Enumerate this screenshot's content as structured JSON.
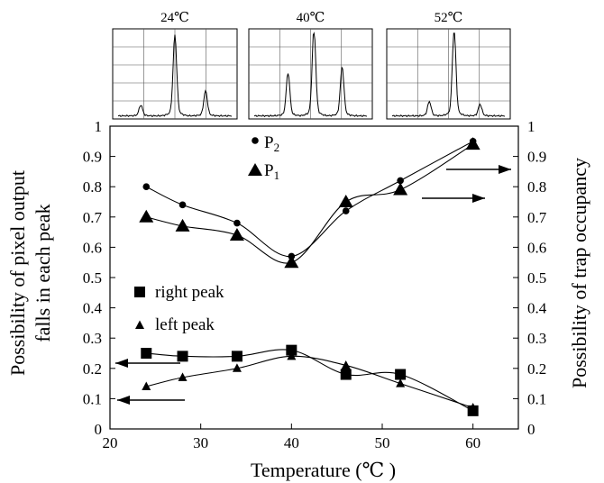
{
  "chart_data": {
    "type": "line",
    "xlabel": "Temperature (℃ )",
    "ylabel_left": [
      "Possibility of pixel output",
      "falls in each peak"
    ],
    "ylabel_right": "Possibility of trap occupancy",
    "xlim": [
      20,
      65
    ],
    "ylim": [
      0,
      1
    ],
    "x_ticks": [
      "20",
      "30",
      "40",
      "50",
      "60"
    ],
    "y_ticks": [
      "0",
      "0.1",
      "0.2",
      "0.3",
      "0.4",
      "0.5",
      "0.6",
      "0.7",
      "0.8",
      "0.9",
      "1"
    ],
    "grid": false,
    "legend_p2": {
      "base": "P",
      "sub": "2"
    },
    "legend_p1": {
      "base": "P",
      "sub": "1"
    },
    "legend_right": "right peak",
    "legend_left": "left peak",
    "series": [
      {
        "key": "p2",
        "marker": "circle",
        "x": [
          24,
          28,
          34,
          40,
          46,
          52,
          60
        ],
        "y": [
          0.8,
          0.74,
          0.68,
          0.57,
          0.72,
          0.82,
          0.95
        ]
      },
      {
        "key": "p1",
        "marker": "triangle",
        "x": [
          24,
          28,
          34,
          40,
          46,
          52,
          60
        ],
        "y": [
          0.7,
          0.67,
          0.64,
          0.55,
          0.75,
          0.79,
          0.94
        ]
      },
      {
        "key": "right_peak",
        "marker": "square",
        "x": [
          24,
          28,
          34,
          40,
          46,
          52,
          60
        ],
        "y": [
          0.25,
          0.24,
          0.24,
          0.26,
          0.18,
          0.18,
          0.06
        ]
      },
      {
        "key": "left_peak",
        "marker": "small-triangle",
        "x": [
          24,
          28,
          34,
          40,
          46,
          52,
          60
        ],
        "y": [
          0.14,
          0.17,
          0.2,
          0.24,
          0.21,
          0.15,
          0.07
        ]
      }
    ],
    "insets": [
      {
        "title": "24℃",
        "peaks": [
          {
            "pos": 0.2,
            "h": 0.12
          },
          {
            "pos": 0.5,
            "h": 0.9
          },
          {
            "pos": 0.77,
            "h": 0.28
          }
        ]
      },
      {
        "title": "40℃",
        "peaks": [
          {
            "pos": 0.3,
            "h": 0.48
          },
          {
            "pos": 0.53,
            "h": 0.98
          },
          {
            "pos": 0.78,
            "h": 0.55
          }
        ]
      },
      {
        "title": "52℃",
        "peaks": [
          {
            "pos": 0.33,
            "h": 0.16
          },
          {
            "pos": 0.55,
            "h": 0.96
          },
          {
            "pos": 0.78,
            "h": 0.13
          }
        ]
      }
    ]
  }
}
